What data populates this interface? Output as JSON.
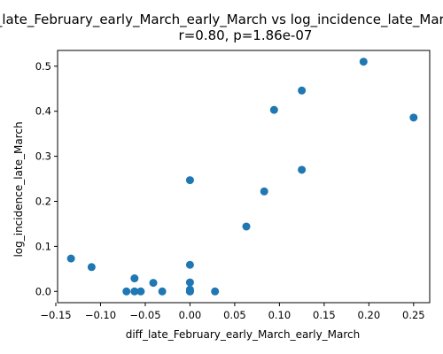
{
  "chart_data": {
    "type": "scatter",
    "title": "diff_late_February_early_March_early_March vs log_incidence_late_March",
    "subtitle": "r=0.80, p=1.86e-07",
    "xlabel": "diff_late_February_early_March_early_March",
    "ylabel": "log_incidence_late_March",
    "xlim": [
      -0.148,
      0.268
    ],
    "ylim": [
      -0.025,
      0.535
    ],
    "xticks": [
      -0.15,
      -0.1,
      -0.05,
      0.0,
      0.05,
      0.1,
      0.15,
      0.2,
      0.25
    ],
    "xtick_labels": [
      "−0.15",
      "−0.10",
      "−0.05",
      "0.00",
      "0.05",
      "0.10",
      "0.15",
      "0.20",
      "0.25"
    ],
    "yticks": [
      0.0,
      0.1,
      0.2,
      0.3,
      0.4,
      0.5
    ],
    "ytick_labels": [
      "0.0",
      "0.1",
      "0.2",
      "0.3",
      "0.4",
      "0.5"
    ],
    "grid": false,
    "point_color": "#1f77b4",
    "points": [
      {
        "x": -0.133,
        "y": 0.073
      },
      {
        "x": -0.11,
        "y": 0.054
      },
      {
        "x": -0.071,
        "y": 0.0
      },
      {
        "x": -0.062,
        "y": 0.029
      },
      {
        "x": -0.062,
        "y": 0.0
      },
      {
        "x": -0.055,
        "y": 0.0
      },
      {
        "x": -0.041,
        "y": 0.019
      },
      {
        "x": -0.031,
        "y": 0.0
      },
      {
        "x": 0.0,
        "y": 0.247
      },
      {
        "x": 0.0,
        "y": 0.059
      },
      {
        "x": 0.0,
        "y": 0.02
      },
      {
        "x": 0.0,
        "y": 0.004
      },
      {
        "x": 0.0,
        "y": 0.0
      },
      {
        "x": 0.0,
        "y": 0.0
      },
      {
        "x": 0.028,
        "y": 0.0
      },
      {
        "x": 0.063,
        "y": 0.144
      },
      {
        "x": 0.083,
        "y": 0.222
      },
      {
        "x": 0.094,
        "y": 0.403
      },
      {
        "x": 0.125,
        "y": 0.446
      },
      {
        "x": 0.125,
        "y": 0.27
      },
      {
        "x": 0.194,
        "y": 0.51
      },
      {
        "x": 0.25,
        "y": 0.386
      }
    ]
  }
}
